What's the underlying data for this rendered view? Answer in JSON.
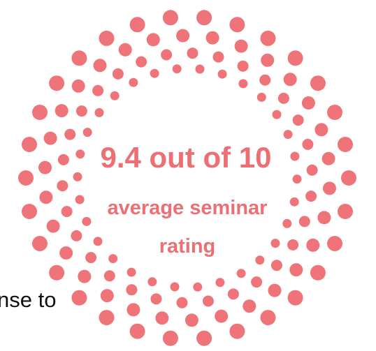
{
  "headline": "9.4 out of 10",
  "caption_lines": [
    "average seminar",
    "rating"
  ],
  "fragment": "nse to"
}
